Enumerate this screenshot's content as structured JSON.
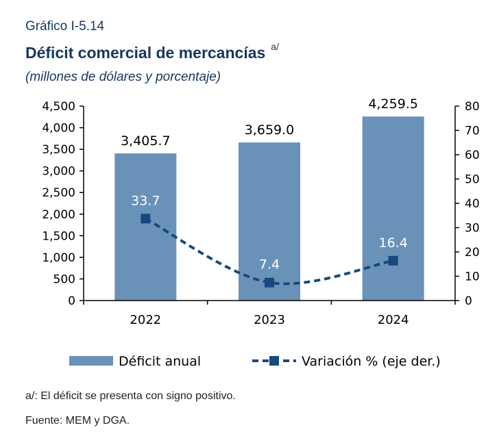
{
  "header": {
    "label": "Gráfico I-5.14",
    "title": "Déficit comercial de mercancías",
    "title_note": "a/",
    "subtitle": "(millones de dólares y porcentaje)"
  },
  "chart_data": {
    "type": "bar",
    "categories": [
      "2022",
      "2023",
      "2024"
    ],
    "series": [
      {
        "name": "Déficit anual",
        "type": "bar",
        "axis": "left",
        "values": [
          3405.7,
          3659.0,
          4259.5
        ],
        "labels": [
          "3,405.7",
          "3,659.0",
          "4,259.5"
        ],
        "color": "#6a92b8"
      },
      {
        "name": "Variación % (eje der.)",
        "type": "line",
        "style": "dashed",
        "marker": "square",
        "axis": "right",
        "values": [
          33.7,
          7.4,
          16.4
        ],
        "labels": [
          "33.7",
          "7.4",
          "16.4"
        ],
        "color": "#17497e"
      }
    ],
    "y_left": {
      "ylim": [
        0,
        4500
      ],
      "ticks": [
        0,
        500,
        1000,
        1500,
        2000,
        2500,
        3000,
        3500,
        4000,
        4500
      ],
      "tick_labels": [
        "0",
        "500",
        "1,000",
        "1,500",
        "2,000",
        "2,500",
        "3,000",
        "3,500",
        "4,000",
        "4,500"
      ]
    },
    "y_right": {
      "ylim": [
        0,
        80
      ],
      "ticks": [
        0,
        10,
        20,
        30,
        40,
        50,
        60,
        70,
        80
      ],
      "tick_labels": [
        "0",
        "10",
        "20",
        "30",
        "40",
        "50",
        "60",
        "70",
        "80"
      ]
    },
    "grid": false,
    "legend": "bottom"
  },
  "notes": {
    "footnote": "a/: El déficit se presenta con signo positivo.",
    "source": "Fuente: MEM y DGA."
  }
}
